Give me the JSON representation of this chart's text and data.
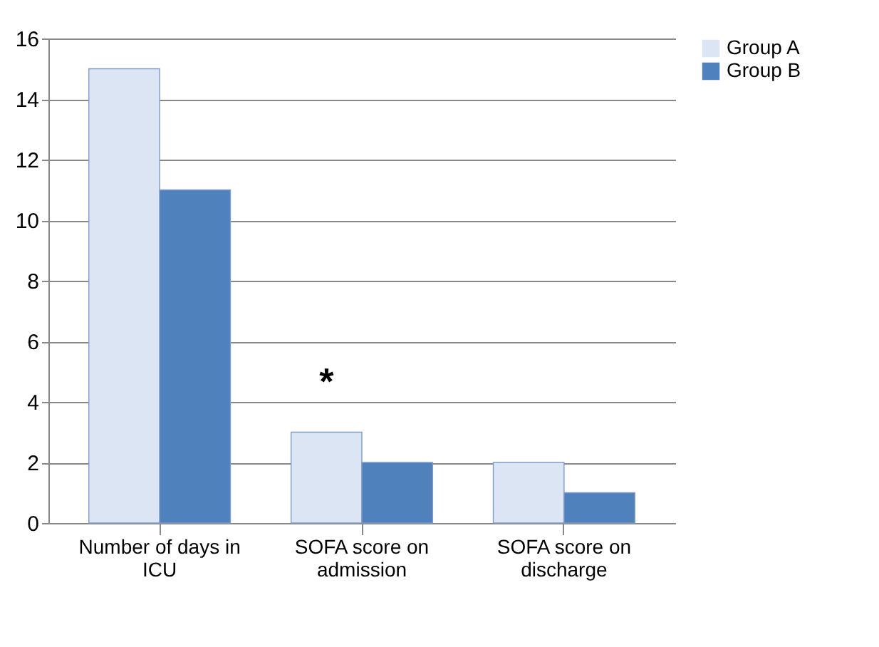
{
  "chart_data": {
    "type": "bar",
    "categories": [
      "Number of days in ICU",
      "SOFA score on admission",
      "SOFA score on discharge"
    ],
    "series": [
      {
        "name": "Group A",
        "color": "#dbe5f4",
        "values": [
          15,
          3,
          2
        ]
      },
      {
        "name": "Group B",
        "color": "#4f81bd",
        "values": [
          11,
          2,
          1
        ]
      }
    ],
    "ylim": [
      0,
      16
    ],
    "yticks": [
      0,
      2,
      4,
      6,
      8,
      10,
      12,
      14,
      16
    ],
    "grid": "y",
    "legend": "right",
    "annotations": [
      {
        "text": "*",
        "x": "SOFA score on admission",
        "y": 3
      }
    ]
  }
}
